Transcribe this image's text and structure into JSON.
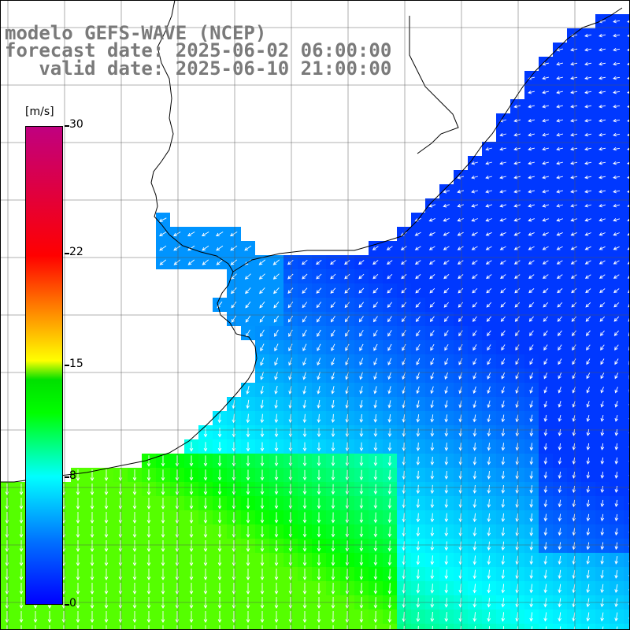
{
  "title": {
    "line1": "modelo GEFS-WAVE (NCEP)",
    "line2": "forecast date: 2025-06-02 06:00:00",
    "line3": "valid date: 2025-06-10 21:00:00"
  },
  "colorbar": {
    "unit": "[m/s]",
    "min": 0,
    "max": 30,
    "tick_labels": [
      "30",
      "22",
      "15",
      "8",
      "0"
    ],
    "tick_values": [
      30,
      22,
      15,
      8,
      0
    ],
    "colors": {
      "low": "#0000ff",
      "mid_low": "#00ffff",
      "mid": "#00ff00",
      "mid_high": "#ffff00",
      "high": "#ff0000",
      "top": "#c00080"
    }
  },
  "map": {
    "land_color": "#ffffff",
    "grid_color": "#555555",
    "vector_color": "#ffffff",
    "wind_direction": "from the north-east, turning southward offshore"
  }
}
